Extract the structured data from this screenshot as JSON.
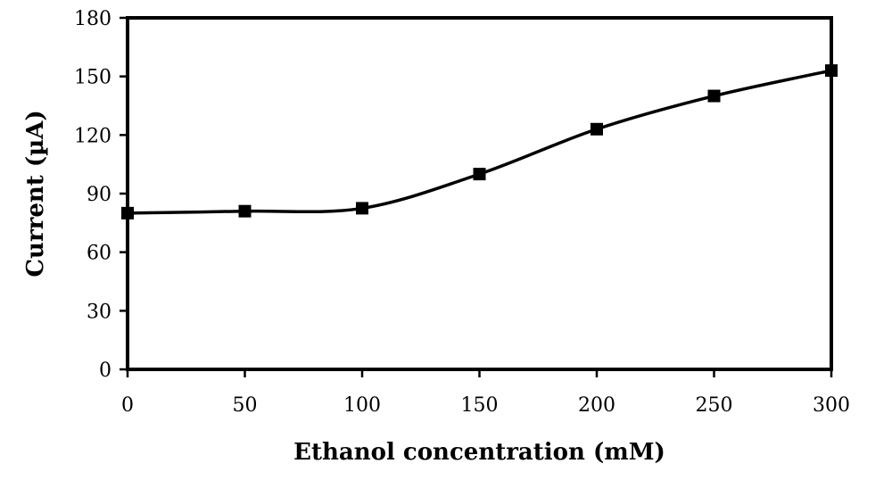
{
  "chart_data": {
    "type": "line",
    "title": "",
    "xlabel": "Ethanol concentration (mM)",
    "ylabel": "Current (µA)",
    "x": [
      0,
      50,
      100,
      150,
      200,
      250,
      300
    ],
    "series": [
      {
        "values": [
          80,
          81,
          82.5,
          100,
          123,
          140,
          153
        ],
        "color": "#000000",
        "marker": "square",
        "smooth": true
      }
    ],
    "xlim": [
      0,
      300
    ],
    "ylim": [
      0,
      180
    ],
    "xticks": [
      0,
      50,
      100,
      150,
      200,
      250,
      300
    ],
    "yticks": [
      0,
      30,
      60,
      90,
      120,
      150,
      180
    ],
    "xtick_labels": [
      "0",
      "50",
      "100",
      "150",
      "200",
      "250",
      "300"
    ],
    "ytick_labels": [
      "0",
      "30",
      "60",
      "90",
      "120",
      "150",
      "180"
    ],
    "grid": false,
    "legend": "none",
    "plot_frame": "box"
  }
}
